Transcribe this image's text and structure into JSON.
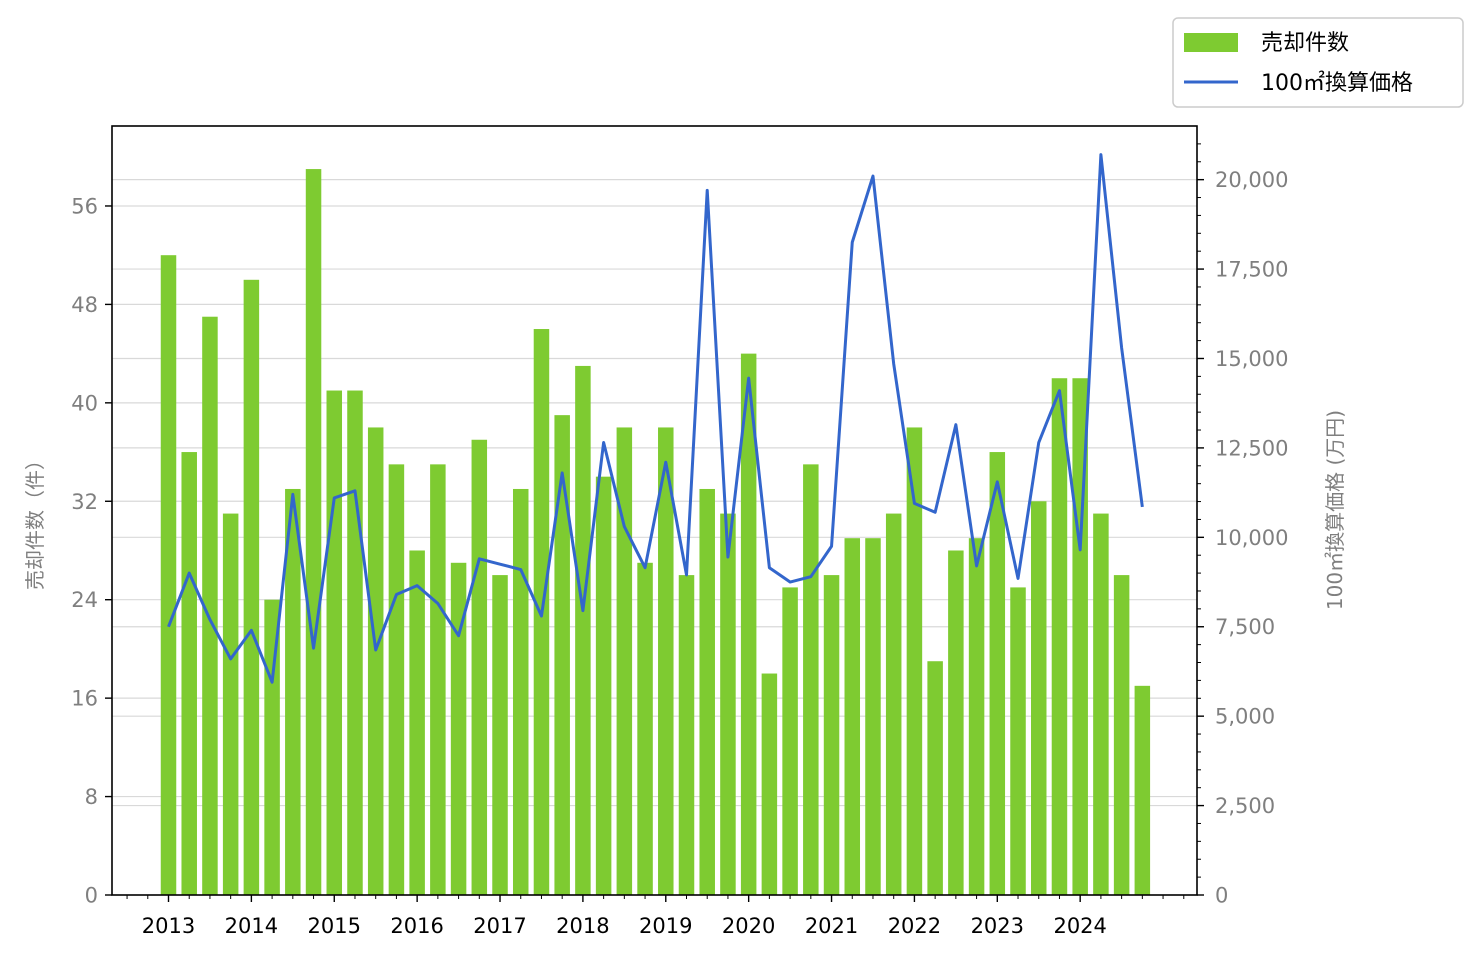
{
  "chart_data": {
    "type": "bar",
    "x_tick_labels": [
      "2013",
      "2014",
      "2015",
      "2016",
      "2017",
      "2018",
      "2019",
      "2020",
      "2021",
      "2022",
      "2023",
      "2024"
    ],
    "left_axis": {
      "label": "売却件数（件）",
      "ticks": [
        0,
        8,
        16,
        24,
        32,
        40,
        48,
        56
      ],
      "tick_labels": [
        "0",
        "8",
        "16",
        "24",
        "32",
        "40",
        "48",
        "56"
      ],
      "ylim": [
        0,
        62.5
      ]
    },
    "right_axis": {
      "label": "100㎡換算価格 (万円)",
      "ticks": [
        0,
        2500,
        5000,
        7500,
        10000,
        12500,
        15000,
        17500,
        20000
      ],
      "tick_labels": [
        "0",
        "2,500",
        "5,000",
        "7,500",
        "10,000",
        "12,500",
        "15,000",
        "17,500",
        "20,000"
      ],
      "ylim": [
        0,
        21500
      ]
    },
    "series": [
      {
        "name": "売却件数",
        "type": "bar",
        "axis": "left",
        "color": "#7ecb31",
        "values": [
          52,
          36,
          47,
          31,
          50,
          24,
          33,
          59,
          41,
          41,
          38,
          35,
          28,
          35,
          27,
          37,
          26,
          33,
          46,
          39,
          43,
          34,
          38,
          27,
          38,
          26,
          33,
          31,
          44,
          18,
          25,
          35,
          26,
          29,
          29,
          31,
          38,
          19,
          28,
          29,
          36,
          25,
          32,
          42,
          42,
          31,
          26,
          17
        ]
      },
      {
        "name": "100㎡換算価格",
        "type": "line",
        "axis": "right",
        "color": "#3366cc",
        "values": [
          7500,
          9000,
          7700,
          6600,
          7400,
          5950,
          11200,
          6900,
          11100,
          11300,
          6850,
          8400,
          8650,
          8150,
          7250,
          9400,
          9250,
          9100,
          7800,
          11800,
          7950,
          12650,
          10300,
          9150,
          12100,
          8950,
          19700,
          9450,
          14450,
          9150,
          8750,
          8900,
          9750,
          18250,
          20100,
          14850,
          10950,
          10700,
          13150,
          9200,
          11550,
          8850,
          12650,
          14100,
          9650,
          20700,
          15300,
          10850
        ]
      }
    ],
    "x_quarters_per_year": 4,
    "grid": true,
    "legend_position": "top-right"
  }
}
